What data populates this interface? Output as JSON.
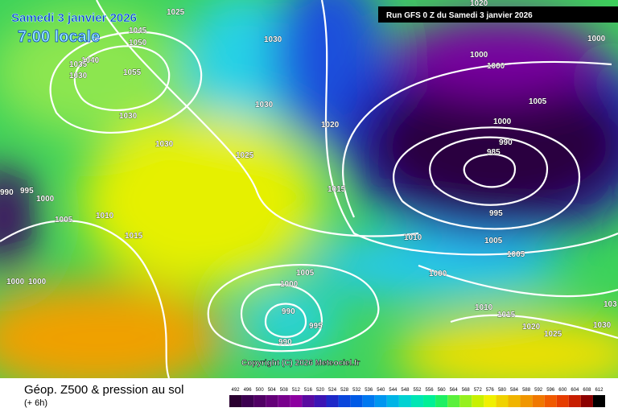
{
  "header": {
    "date": "Samedi 3 janvier 2026",
    "time": "7:00 locale",
    "run": "Run GFS 0 Z du Samedi 3 janvier 2026"
  },
  "isobar_labels": [
    1025,
    1045,
    1050,
    1040,
    1035,
    1030,
    1055,
    1030,
    1030,
    1030,
    1030,
    1025,
    1020,
    1015,
    1010,
    1015,
    995,
    990,
    1000,
    1005,
    1000,
    1000,
    1010,
    1005,
    1000,
    990,
    995,
    990,
    1000,
    1005,
    1005,
    995,
    985,
    990,
    1000,
    1005,
    1000,
    1000,
    1000,
    1020,
    1010,
    1015,
    1020,
    1025,
    1030,
    103
  ],
  "footer": {
    "title": "Géop. Z500 & pression au sol",
    "lead": "(+ 6h)",
    "copyright": "Copyright (C) 2026 Meteociel.fr"
  },
  "scale": {
    "values": [
      492,
      496,
      500,
      504,
      508,
      512,
      516,
      520,
      524,
      528,
      532,
      536,
      540,
      544,
      548,
      552,
      556,
      560,
      564,
      568,
      572,
      576,
      580,
      584,
      588,
      592,
      596,
      600,
      604,
      608,
      612
    ],
    "colors": [
      "#2a0030",
      "#3c0050",
      "#500064",
      "#640078",
      "#78008c",
      "#8c00a0",
      "#5a0aa0",
      "#3c14b4",
      "#1e28c8",
      "#0a46dc",
      "#005ae6",
      "#0078f0",
      "#0096f0",
      "#00b4e6",
      "#00d2d2",
      "#00e6b4",
      "#00f096",
      "#1ef064",
      "#5af03c",
      "#96f01e",
      "#c8f000",
      "#f0f000",
      "#f0d200",
      "#f0b400",
      "#f09600",
      "#f07800",
      "#f05a00",
      "#e63c00",
      "#c81e00",
      "#8c0000",
      "#000000"
    ]
  }
}
